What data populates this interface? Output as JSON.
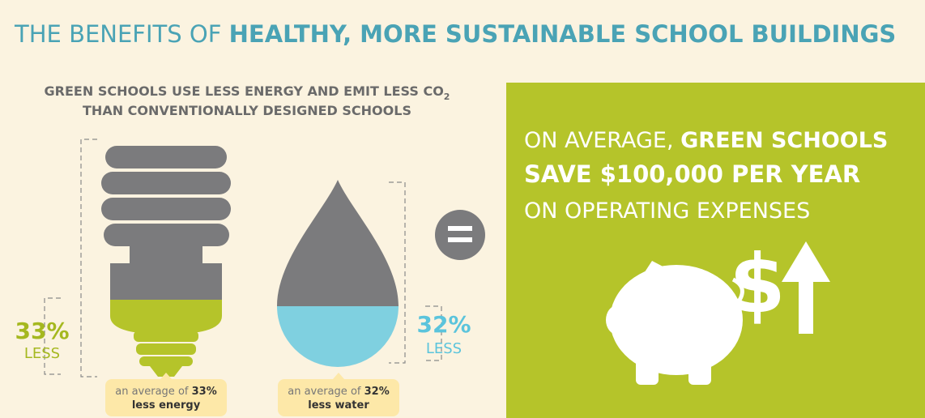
{
  "header": {
    "title_light": "THE BENEFITS OF ",
    "title_bold": "HEALTHY, MORE SUSTAINABLE SCHOOL BUILDINGS"
  },
  "subtitle": {
    "line1": "GREEN SCHOOLS USE LESS ENERGY AND EMIT LESS CO",
    "line1_subscript": "2",
    "line2": "THAN CONVENTIONALLY DESIGNED SCHOOLS"
  },
  "energy": {
    "percent": "33%",
    "less": "LESS",
    "callout_prefix": "an average of ",
    "callout_percent": "33%",
    "callout_line2": "less energy"
  },
  "water": {
    "percent": "32%",
    "less": "LESS",
    "callout_prefix": "an average of ",
    "callout_percent": "32%",
    "callout_line2": "less water"
  },
  "savings": {
    "line1_light": "ON AVERAGE, ",
    "line1_bold": "GREEN SCHOOLS",
    "line2": "SAVE $100,000 PER YEAR",
    "line3": "ON OPERATING EXPENSES",
    "icon_symbol": "$"
  }
}
